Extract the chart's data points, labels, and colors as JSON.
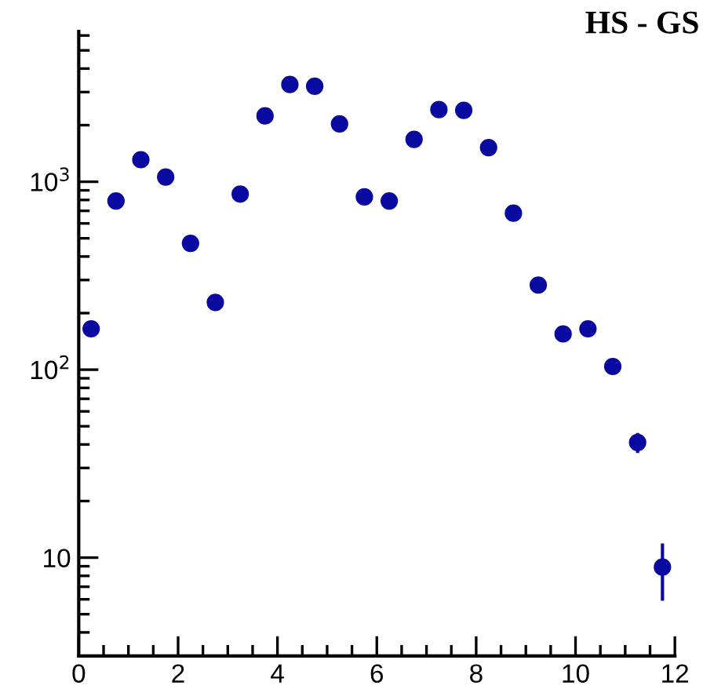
{
  "chart_data": {
    "type": "scatter",
    "title": "HS - GS",
    "x": [
      0.25,
      0.75,
      1.25,
      1.75,
      2.25,
      2.75,
      3.25,
      3.75,
      4.25,
      4.75,
      5.25,
      5.75,
      6.25,
      6.75,
      7.25,
      7.75,
      8.25,
      8.75,
      9.25,
      9.75,
      10.25,
      10.75,
      11.25,
      11.75
    ],
    "series": [
      {
        "color": "#0a0aa0",
        "values": [
          165,
          790,
          1310,
          1060,
          470,
          228,
          860,
          2240,
          3290,
          3220,
          2030,
          830,
          790,
          1680,
          2420,
          2400,
          1520,
          680,
          282,
          155,
          165,
          104,
          41,
          8.9
        ],
        "errors": [
          null,
          null,
          null,
          null,
          null,
          null,
          null,
          null,
          null,
          null,
          null,
          null,
          null,
          null,
          null,
          null,
          null,
          null,
          null,
          null,
          null,
          null,
          5,
          3
        ]
      }
    ],
    "log": "y",
    "xlim": [
      0,
      12
    ],
    "xticks": [
      0,
      2,
      4,
      6,
      8,
      10,
      12
    ],
    "ylim": [
      3,
      6300
    ],
    "yticks": [
      {
        "value": 10,
        "label": "10"
      },
      {
        "value": 100,
        "label": "10$^{2}$"
      },
      {
        "value": 1000,
        "label": "10$^{3}$"
      }
    ],
    "marker": "circle",
    "grid": false,
    "legend": false
  }
}
